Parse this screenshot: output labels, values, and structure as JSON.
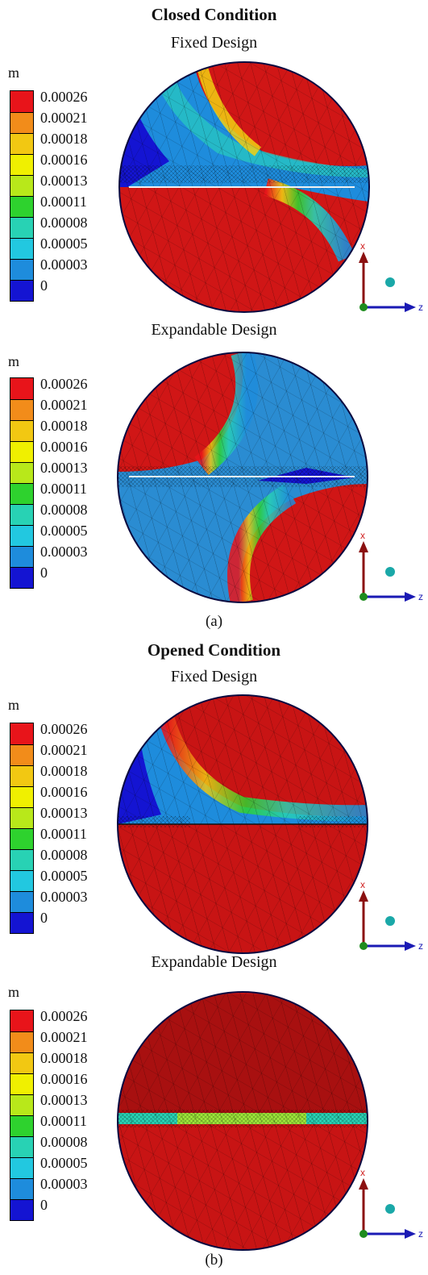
{
  "panels": [
    {
      "heading": "Closed Condition",
      "sub": "Fixed Design",
      "unit": "m"
    },
    {
      "heading": "",
      "sub": "Expandable Design",
      "unit": "m"
    },
    {
      "heading": "Opened Condition",
      "sub": "Fixed Design",
      "unit": "m"
    },
    {
      "heading": "",
      "sub": "Expandable Design",
      "unit": "m"
    }
  ],
  "captions": {
    "a": "(a)",
    "b": "(b)"
  },
  "legend": {
    "ticks": [
      "0.00026",
      "0.00021",
      "0.00018",
      "0.00016",
      "0.00013",
      "0.00011",
      "0.00008",
      "0.00005",
      "0.00003",
      "0"
    ],
    "colors": [
      "#e8141a",
      "#f28c1a",
      "#f2c812",
      "#f0f000",
      "#b8e81a",
      "#2ed22e",
      "#28d2b4",
      "#22c8e0",
      "#1e8cdc",
      "#1414d2"
    ]
  },
  "axes": {
    "x": "x",
    "z": "z"
  }
}
